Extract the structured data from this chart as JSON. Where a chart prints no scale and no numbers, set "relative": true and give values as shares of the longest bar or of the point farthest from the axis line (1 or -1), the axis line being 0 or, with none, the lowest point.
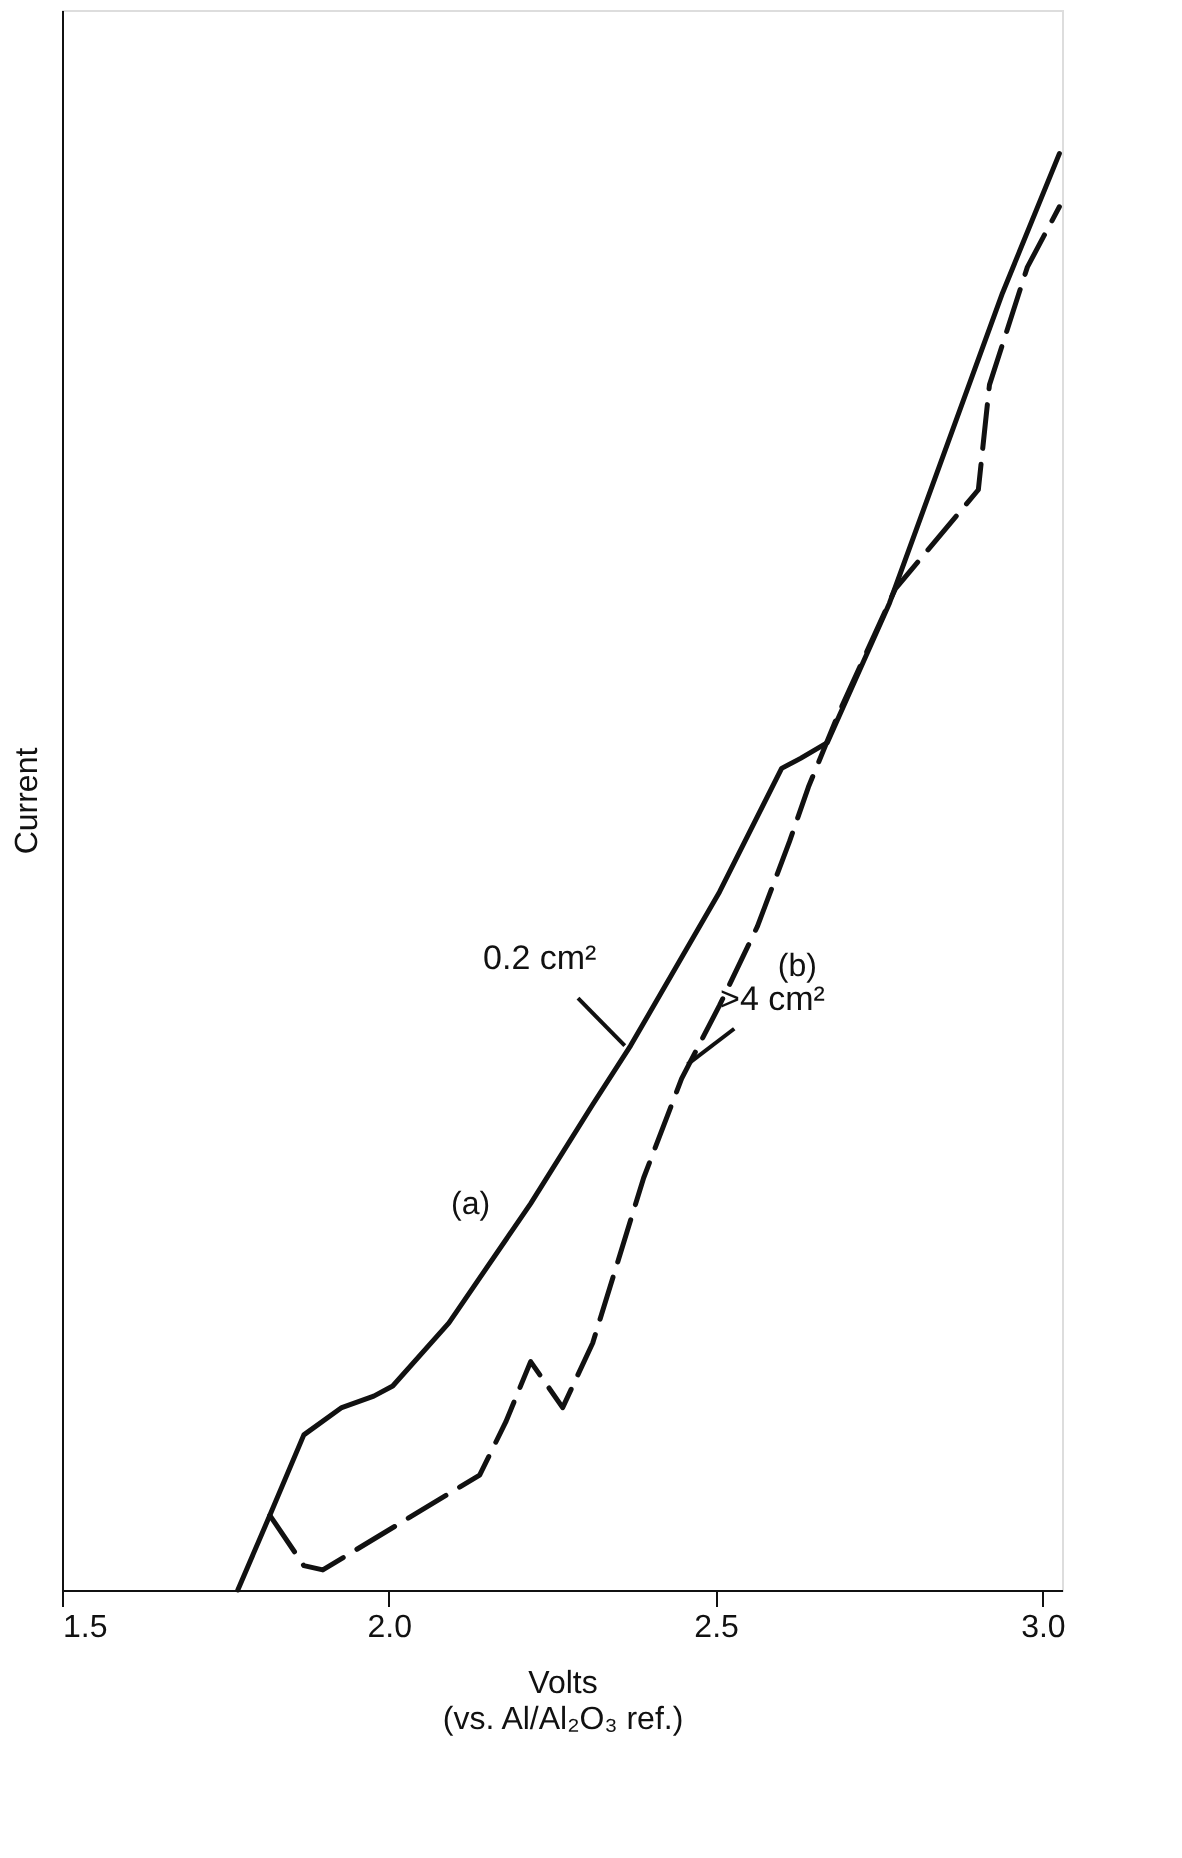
{
  "chart_data": {
    "type": "line",
    "relative": true,
    "xlabel": "Volts\n(vs. Al/Al₂O₃ ref.)",
    "ylabel": "Current",
    "xlim": [
      1.5,
      3.03
    ],
    "xticks": [
      {
        "value": 1.5,
        "label": "1.5"
      },
      {
        "value": 2.0,
        "label": "2.0"
      },
      {
        "value": 2.5,
        "label": "2.5"
      },
      {
        "value": 3.0,
        "label": "3.0"
      }
    ],
    "grid": false,
    "series": [
      {
        "name": "(a)",
        "color": "#111111",
        "line_style": "solid",
        "x": [
          1.769,
          1.818,
          1.87,
          1.928,
          1.977,
          2.006,
          2.092,
          2.217,
          2.312,
          2.37,
          2.506,
          2.601,
          2.63,
          2.671,
          2.766,
          2.939,
          3.026
        ],
        "values": [
          0,
          0.052,
          0.108,
          0.127,
          0.135,
          0.142,
          0.186,
          0.269,
          0.338,
          0.379,
          0.486,
          0.572,
          0.579,
          0.59,
          0.687,
          0.903,
          1.0
        ]
      },
      {
        "name": "(b)",
        "color": "#111111",
        "line_style": "dashed",
        "x": [
          1.818,
          1.87,
          1.899,
          2.139,
          2.179,
          2.217,
          2.266,
          2.312,
          2.39,
          2.448,
          2.506,
          2.564,
          2.613,
          2.642,
          2.688,
          2.775,
          2.832,
          2.902,
          2.919,
          2.977,
          3.026
        ],
        "values": [
          0.052,
          0.017,
          0.014,
          0.08,
          0.117,
          0.159,
          0.127,
          0.172,
          0.287,
          0.356,
          0.407,
          0.462,
          0.521,
          0.559,
          0.61,
          0.697,
          0.728,
          0.766,
          0.839,
          0.921,
          0.963
        ]
      }
    ],
    "annotations": [
      {
        "text": "0.2 cm²",
        "x": 2.361,
        "y": 0.379
      },
      {
        "text": ">4 cm²",
        "x": 2.457,
        "y": 0.366
      }
    ]
  }
}
